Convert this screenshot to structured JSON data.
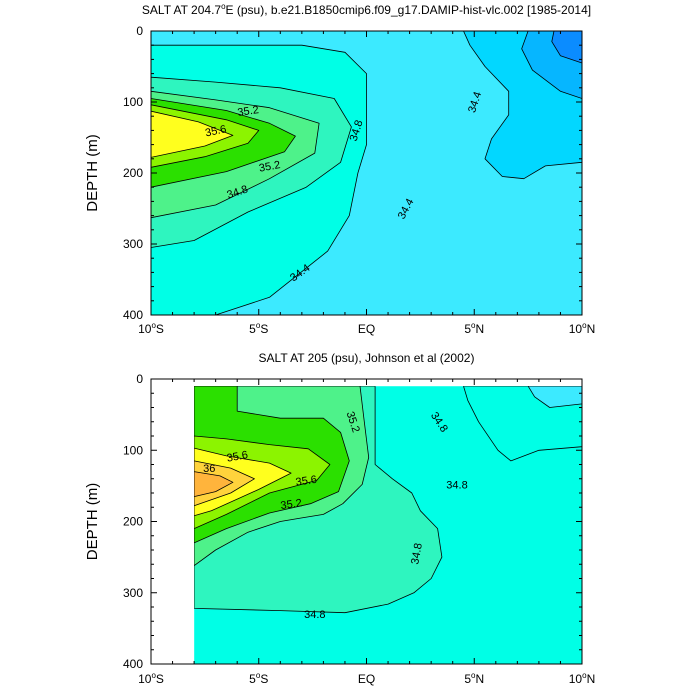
{
  "colors": {
    "c33_8": "#0b8cff",
    "c34_0": "#06b6ff",
    "c34_2": "#02d7ff",
    "c34_4": "#3ceaff",
    "c34_6": "#00ffe6",
    "c34_8": "#2ef5bf",
    "c35_0": "#4ef28a",
    "c35_2": "#2be000",
    "c35_4": "#8cf400",
    "c35_6": "#ffff1e",
    "c35_8": "#ffd33c",
    "c36_0": "#ffb43c",
    "contour_line": "#000000"
  },
  "chart_data": [
    {
      "type": "contour",
      "title": "SALT AT 204.7°E (psu), b.e21.B1850cmip6.f09_g17.DAMIP-hist-vlc.002 [1985-2014]",
      "title_parts": {
        "pre": "SALT AT 204.7",
        "deg": "o",
        "post": "E (psu), b.e21.B1850cmip6.f09_g17.DAMIP-hist-vlc.002 [1985-2014]"
      },
      "xlabel": "",
      "ylabel": "DEPTH (m)",
      "xlim": [
        -10,
        10
      ],
      "ylim": [
        400,
        0
      ],
      "x_ticks": [
        {
          "value": -10,
          "num": "10",
          "deg": "o",
          "hem": "S"
        },
        {
          "value": -5,
          "num": "5",
          "deg": "o",
          "hem": "S"
        },
        {
          "value": 0,
          "num": "EQ",
          "deg": "",
          "hem": ""
        },
        {
          "value": 5,
          "num": "5",
          "deg": "o",
          "hem": "N"
        },
        {
          "value": 10,
          "num": "10",
          "deg": "o",
          "hem": "N"
        }
      ],
      "y_ticks": [
        {
          "value": 0,
          "label": "0"
        },
        {
          "value": 100,
          "label": "100"
        },
        {
          "value": 200,
          "label": "200"
        },
        {
          "value": 300,
          "label": "300"
        },
        {
          "value": 400,
          "label": "400"
        }
      ],
      "data_x_start": -10,
      "background_level": "34.4",
      "regions": [
        {
          "level": "34.6",
          "points": [
            [
              -10,
              20
            ],
            [
              -3,
              20
            ],
            [
              -1,
              30
            ],
            [
              0,
              60
            ],
            [
              0,
              160
            ],
            [
              -0.4,
              200
            ],
            [
              -0.8,
              260
            ],
            [
              -1.8,
              310
            ],
            [
              -4.5,
              375
            ],
            [
              -7,
              400
            ],
            [
              -10,
              400
            ]
          ]
        },
        {
          "level": "34.8",
          "points": [
            [
              -10,
              65
            ],
            [
              -7,
              72
            ],
            [
              -4,
              80
            ],
            [
              -1.5,
              95
            ],
            [
              -0.7,
              135
            ],
            [
              -1.2,
              185
            ],
            [
              -2.8,
              220
            ],
            [
              -5.5,
              255
            ],
            [
              -8,
              295
            ],
            [
              -10,
              305
            ]
          ]
        },
        {
          "level": "35.0",
          "points": [
            [
              -10,
              85
            ],
            [
              -7,
              97
            ],
            [
              -4.5,
              108
            ],
            [
              -2.2,
              130
            ],
            [
              -2.4,
              172
            ],
            [
              -4.5,
              208
            ],
            [
              -7,
              245
            ],
            [
              -10,
              263
            ]
          ]
        },
        {
          "level": "35.2",
          "points": [
            [
              -10,
              95
            ],
            [
              -6.5,
              112
            ],
            [
              -4.5,
              130
            ],
            [
              -3.3,
              148
            ],
            [
              -3.8,
              170
            ],
            [
              -6.5,
              198
            ],
            [
              -10,
              220
            ]
          ]
        },
        {
          "level": "35.4",
          "points": [
            [
              -10,
              104
            ],
            [
              -6.5,
              125
            ],
            [
              -5,
              140
            ],
            [
              -5.5,
              158
            ],
            [
              -7.5,
              177
            ],
            [
              -10,
              192
            ]
          ]
        },
        {
          "level": "35.6",
          "points": [
            [
              -10,
              113
            ],
            [
              -7.8,
              128
            ],
            [
              -6.2,
              147
            ],
            [
              -7.5,
              162
            ],
            [
              -10,
              178
            ]
          ]
        },
        {
          "level": "34.2",
          "points": [
            [
              4.5,
              0
            ],
            [
              10,
              0
            ],
            [
              10,
              185
            ],
            [
              8.3,
              190
            ],
            [
              7.3,
              208
            ],
            [
              6.3,
              205
            ],
            [
              5.5,
              180
            ],
            [
              5.8,
              152
            ],
            [
              6.6,
              118
            ],
            [
              6.6,
              85
            ],
            [
              5.5,
              50
            ],
            [
              4.8,
              20
            ]
          ]
        },
        {
          "level": "34.0",
          "points": [
            [
              7.5,
              0
            ],
            [
              10,
              0
            ],
            [
              10,
              95
            ],
            [
              9,
              85
            ],
            [
              7.7,
              55
            ],
            [
              7.2,
              25
            ]
          ]
        },
        {
          "level": "33.8",
          "points": [
            [
              8.7,
              0
            ],
            [
              10,
              0
            ],
            [
              10,
              45
            ],
            [
              9,
              35
            ],
            [
              8.6,
              15
            ]
          ]
        }
      ],
      "labels": [
        {
          "text": "35.2",
          "x": -5.5,
          "y": 112,
          "angle": -8
        },
        {
          "text": "35.6",
          "x": -7.0,
          "y": 140,
          "angle": -12
        },
        {
          "text": "35.2",
          "x": -4.5,
          "y": 190,
          "angle": -10
        },
        {
          "text": "34.8",
          "x": -6.0,
          "y": 226,
          "angle": -18
        },
        {
          "text": "34.8",
          "x": -0.5,
          "y": 140,
          "angle": -72
        },
        {
          "text": "34.4",
          "x": 5.0,
          "y": 100,
          "angle": -72
        },
        {
          "text": "34.4",
          "x": 1.8,
          "y": 250,
          "angle": -62
        },
        {
          "text": "34.4",
          "x": -3.1,
          "y": 340,
          "angle": -36
        }
      ]
    },
    {
      "type": "contour",
      "title": "SALT AT 205 (psu), Johnson et al (2002)",
      "title_parts": {
        "pre": "SALT AT 205 (psu), Johnson et al (2002)",
        "deg": "",
        "post": ""
      },
      "xlabel": "",
      "ylabel": "DEPTH (m)",
      "xlim": [
        -10,
        10
      ],
      "ylim": [
        400,
        0
      ],
      "x_ticks": [
        {
          "value": -10,
          "num": "10",
          "deg": "o",
          "hem": "S"
        },
        {
          "value": -5,
          "num": "5",
          "deg": "o",
          "hem": "S"
        },
        {
          "value": 0,
          "num": "EQ",
          "deg": "",
          "hem": ""
        },
        {
          "value": 5,
          "num": "5",
          "deg": "o",
          "hem": "N"
        },
        {
          "value": 10,
          "num": "10",
          "deg": "o",
          "hem": "N"
        }
      ],
      "y_ticks": [
        {
          "value": 0,
          "label": "0"
        },
        {
          "value": 100,
          "label": "100"
        },
        {
          "value": 200,
          "label": "200"
        },
        {
          "value": 300,
          "label": "300"
        },
        {
          "value": 400,
          "label": "400"
        }
      ],
      "data_x_start": -8,
      "background_level": "34.6",
      "regions": [
        {
          "level": "34.8",
          "points": [
            [
              -8,
              10
            ],
            [
              0.4,
              10
            ],
            [
              0.4,
              120
            ],
            [
              1.2,
              140
            ],
            [
              2.1,
              160
            ],
            [
              2.5,
              185
            ],
            [
              3.3,
              210
            ],
            [
              3.5,
              250
            ],
            [
              3,
              280
            ],
            [
              2.2,
              300
            ],
            [
              1,
              316
            ],
            [
              -1,
              328
            ],
            [
              -4,
              325
            ],
            [
              -8,
              322
            ]
          ]
        },
        {
          "level": "35.0",
          "points": [
            [
              -8,
              10
            ],
            [
              -0.3,
              10
            ],
            [
              -0.1,
              60
            ],
            [
              0.1,
              110
            ],
            [
              -0.2,
              148
            ],
            [
              -1.1,
              175
            ],
            [
              -2,
              190
            ],
            [
              -3,
              195
            ],
            [
              -4,
              200
            ],
            [
              -5.5,
              215
            ],
            [
              -7,
              240
            ],
            [
              -8,
              262
            ]
          ]
        },
        {
          "level": "35.2",
          "points": [
            [
              -8,
              10
            ],
            [
              -6,
              10
            ],
            [
              -6,
              45
            ],
            [
              -4,
              55
            ],
            [
              -2,
              55
            ],
            [
              -1.2,
              75
            ],
            [
              -0.8,
              115
            ],
            [
              -1.3,
              158
            ],
            [
              -2.6,
              175
            ],
            [
              -4.5,
              188
            ],
            [
              -6.5,
              210
            ],
            [
              -8,
              230
            ]
          ]
        },
        {
          "level": "35.4",
          "points": [
            [
              -8,
              80
            ],
            [
              -6.5,
              84
            ],
            [
              -4.5,
              92
            ],
            [
              -2.7,
              98
            ],
            [
              -1.7,
              120
            ],
            [
              -2.3,
              142
            ],
            [
              -4.5,
              160
            ],
            [
              -6.5,
              190
            ],
            [
              -8,
              210
            ]
          ]
        },
        {
          "level": "35.6",
          "points": [
            [
              -8,
              97
            ],
            [
              -6.5,
              108
            ],
            [
              -4.5,
              118
            ],
            [
              -3.5,
              132
            ],
            [
              -5,
              155
            ],
            [
              -7.2,
              185
            ],
            [
              -8,
              192
            ]
          ]
        },
        {
          "level": "35.8",
          "points": [
            [
              -8,
              115
            ],
            [
              -6.3,
              125
            ],
            [
              -5.2,
              140
            ],
            [
              -6.3,
              160
            ],
            [
              -8,
              178
            ]
          ]
        },
        {
          "level": "36.0",
          "points": [
            [
              -8,
              130
            ],
            [
              -6.8,
              136
            ],
            [
              -6.2,
              145
            ],
            [
              -7,
              158
            ],
            [
              -8,
              165
            ]
          ]
        },
        {
          "level": "34.6",
          "points": [
            [
              4.5,
              10
            ],
            [
              10,
              10
            ],
            [
              10,
              95
            ],
            [
              8,
              100
            ],
            [
              6.7,
              115
            ],
            [
              6.1,
              100
            ],
            [
              5.2,
              60
            ],
            [
              4.7,
              30
            ]
          ]
        },
        {
          "level": "34.4",
          "points": [
            [
              7.5,
              10
            ],
            [
              10,
              10
            ],
            [
              10,
              35
            ],
            [
              8.5,
              40
            ],
            [
              7.8,
              25
            ]
          ]
        }
      ],
      "labels": [
        {
          "text": "36",
          "x": -7.3,
          "y": 125,
          "angle": 0
        },
        {
          "text": "35.6",
          "x": -6.0,
          "y": 108,
          "angle": -10
        },
        {
          "text": "35.6",
          "x": -2.8,
          "y": 142,
          "angle": -8
        },
        {
          "text": "35.2",
          "x": -3.5,
          "y": 175,
          "angle": -8
        },
        {
          "text": "35.2",
          "x": -0.6,
          "y": 60,
          "angle": 72
        },
        {
          "text": "34.8",
          "x": 3.4,
          "y": 60,
          "angle": 56
        },
        {
          "text": "34.8",
          "x": 4.2,
          "y": 148,
          "angle": 0
        },
        {
          "text": "34.8",
          "x": 2.3,
          "y": 245,
          "angle": -80
        },
        {
          "text": "34.8",
          "x": -2.4,
          "y": 330,
          "angle": 0
        }
      ]
    }
  ]
}
